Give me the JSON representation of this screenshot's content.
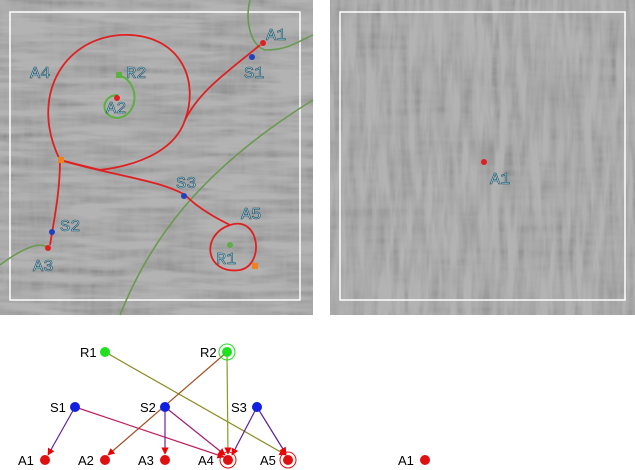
{
  "left_image": {
    "labels": [
      "A1",
      "S1",
      "R2",
      "A4",
      "A2",
      "S3",
      "A5",
      "S2",
      "A3",
      "R1"
    ]
  },
  "right_image": {
    "labels": [
      "A1"
    ]
  },
  "graph": {
    "nodes": [
      "R1",
      "R2",
      "S1",
      "S2",
      "S3",
      "A1",
      "A2",
      "A3",
      "A4",
      "A5"
    ],
    "isolated_node": "A1"
  }
}
